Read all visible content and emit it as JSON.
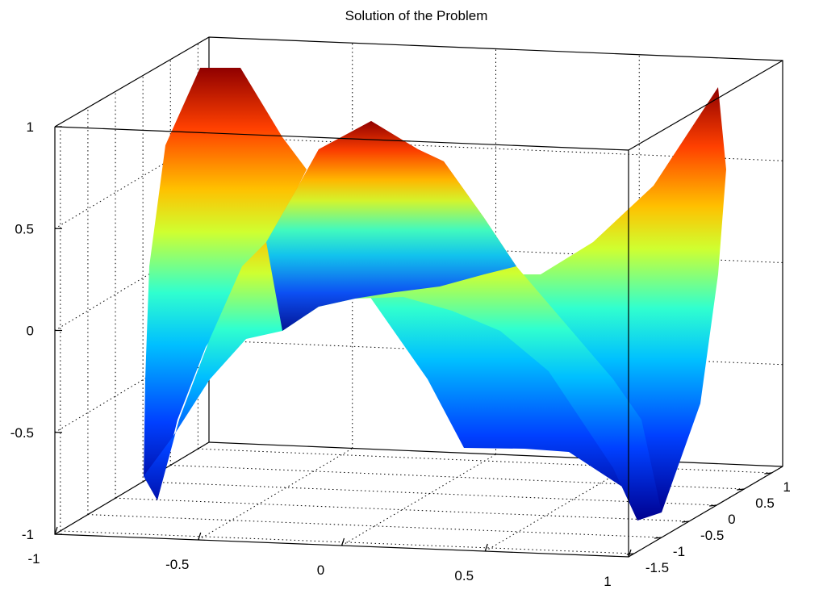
{
  "chart_data": {
    "type": "surface",
    "title": "Solution of the Problem",
    "xlabel": "",
    "ylabel": "",
    "zlabel": "",
    "grid": true,
    "colormap": "jet",
    "x_ticks": [
      "-1",
      "-0.5",
      "0",
      "0.5",
      "1"
    ],
    "y_ticks": [
      "-1.5",
      "-1",
      "-0.5",
      "0",
      "0.5",
      "1"
    ],
    "z_ticks": [
      "-1",
      "-0.5",
      "0",
      "0.5",
      "1"
    ],
    "xlim": [
      -1,
      1
    ],
    "ylim": [
      -1.6,
      1.2
    ],
    "zlim": [
      -1,
      1
    ]
  }
}
